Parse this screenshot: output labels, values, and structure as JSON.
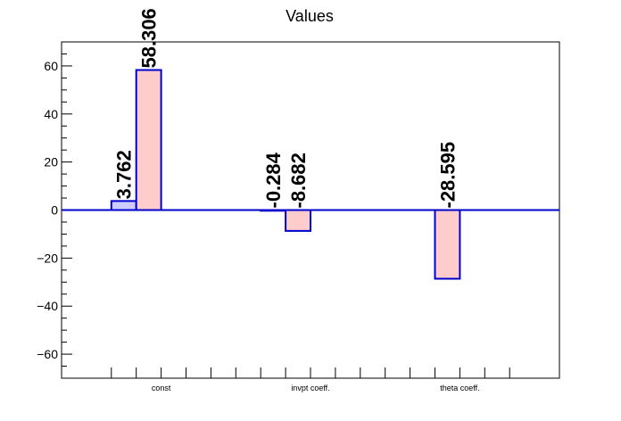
{
  "chart_data": {
    "type": "bar",
    "title": "Values",
    "xlabel": "",
    "ylabel": "",
    "categories": [
      "const",
      "invpt coeff.",
      "theta coeff."
    ],
    "series": [
      {
        "values": [
          3.762,
          -0.284,
          null
        ],
        "color": "#ccccff",
        "edge": "#0000cc"
      },
      {
        "values": [
          58.306,
          -8.682,
          -28.595
        ],
        "color": "#ffcccc",
        "edge": "#0000cc"
      }
    ],
    "data_labels": [
      [
        "3.762",
        "-0.284",
        ""
      ],
      [
        "58.306",
        "-8.682",
        "-28.595"
      ]
    ],
    "ylim": [
      -70,
      70
    ],
    "yticks": [
      -60,
      -40,
      -20,
      0,
      20,
      40,
      60
    ],
    "ytick_labels": [
      "−60",
      "−40",
      "−20",
      "0",
      "20",
      "40",
      "60"
    ],
    "grid": false,
    "legend": "none"
  }
}
